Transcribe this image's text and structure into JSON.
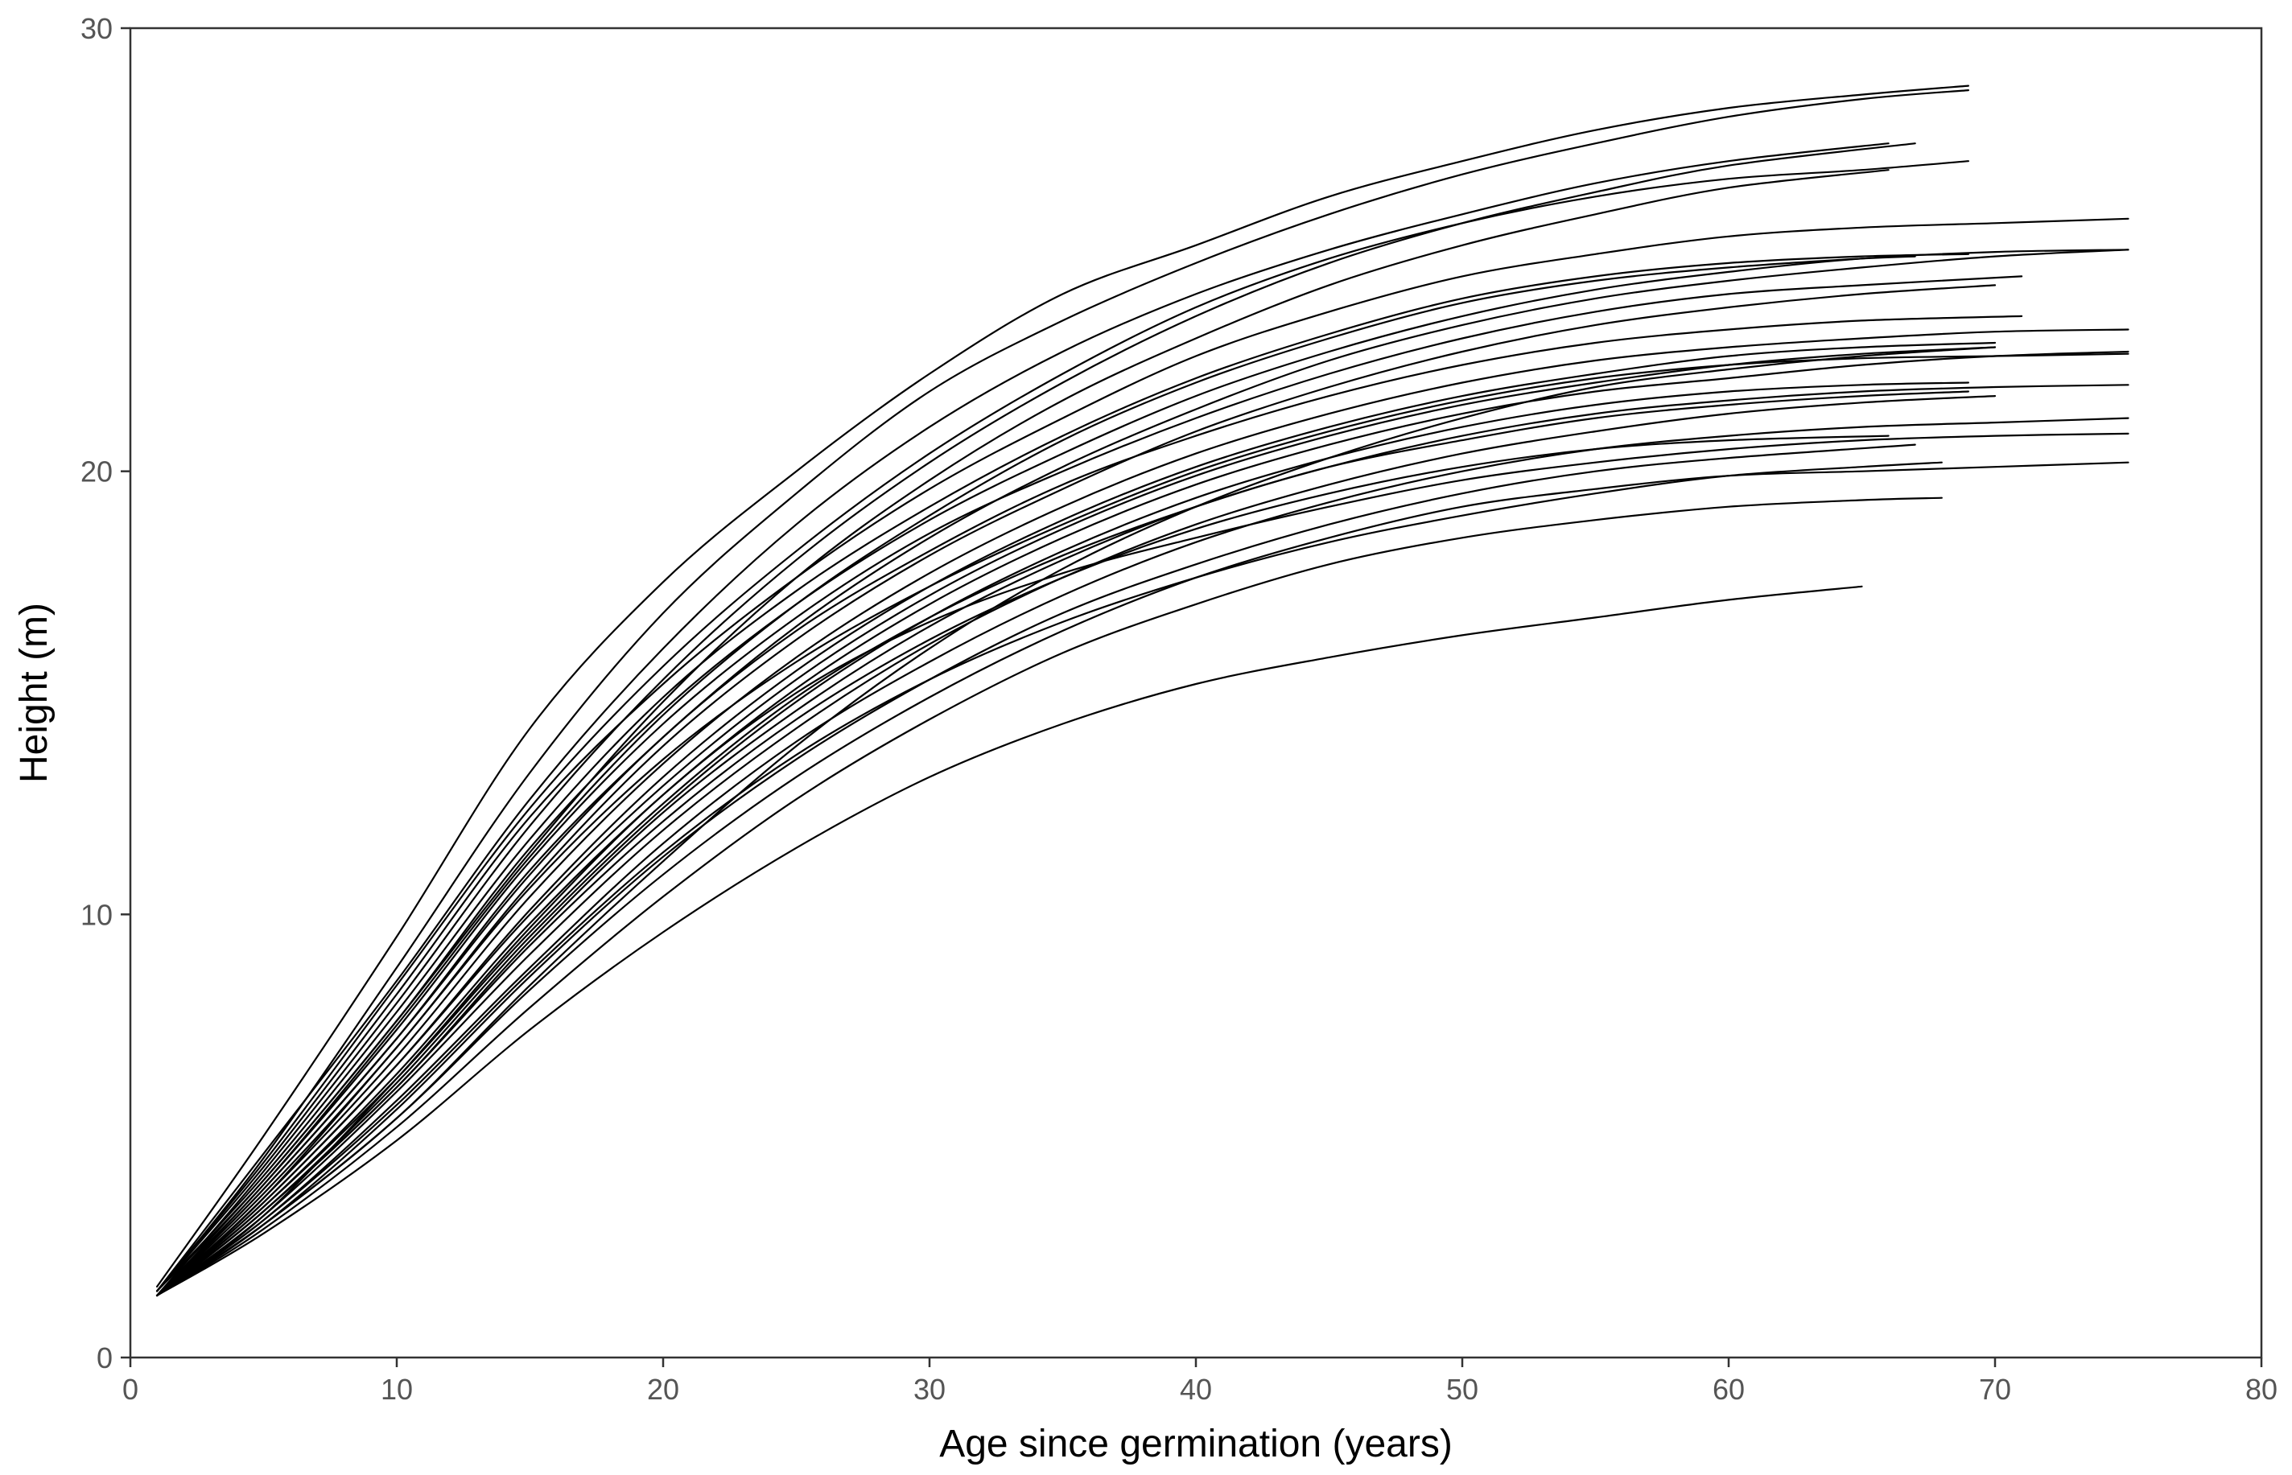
{
  "chart_data": {
    "type": "line",
    "title": "",
    "xlabel": "Age since germination (years)",
    "ylabel": "Height (m)",
    "xlim": [
      0,
      80
    ],
    "ylim": [
      0,
      30
    ],
    "xticks": [
      0,
      10,
      20,
      30,
      40,
      50,
      60,
      70,
      80
    ],
    "yticks": [
      0,
      10,
      20,
      30
    ],
    "grid": false,
    "legend": "none",
    "series_color": "#000000",
    "series": [
      {
        "x": [
          1,
          5,
          10,
          15,
          20,
          25,
          30,
          35,
          40,
          45,
          50,
          55,
          60,
          65,
          69
        ],
        "y": [
          1.6,
          5.0,
          9.5,
          14.2,
          17.5,
          20.0,
          22.2,
          24.0,
          25.1,
          26.2,
          27.0,
          27.7,
          28.2,
          28.5,
          28.7
        ]
      },
      {
        "x": [
          1,
          5,
          10,
          15,
          20,
          25,
          30,
          35,
          40,
          45,
          50,
          55,
          60,
          65,
          69
        ],
        "y": [
          1.5,
          4.5,
          8.8,
          13.2,
          16.8,
          19.5,
          21.8,
          23.4,
          24.7,
          25.8,
          26.7,
          27.4,
          28.0,
          28.4,
          28.6
        ]
      },
      {
        "x": [
          1,
          5,
          10,
          15,
          20,
          25,
          30,
          35,
          40,
          45,
          50,
          55,
          60,
          66
        ],
        "y": [
          1.5,
          4.6,
          8.5,
          12.6,
          16.0,
          18.8,
          21.0,
          22.7,
          24.0,
          25.0,
          25.8,
          26.5,
          27.0,
          27.4
        ]
      },
      {
        "x": [
          1,
          5,
          10,
          15,
          20,
          25,
          30,
          35,
          40,
          45,
          50,
          55,
          60,
          67
        ],
        "y": [
          1.4,
          4.2,
          8.0,
          12.0,
          15.3,
          18.0,
          20.2,
          22.0,
          23.5,
          24.7,
          25.6,
          26.3,
          26.9,
          27.4
        ]
      },
      {
        "x": [
          1,
          5,
          10,
          15,
          20,
          25,
          30,
          35,
          40,
          45,
          50,
          55,
          60,
          65,
          69
        ],
        "y": [
          1.5,
          4.4,
          8.4,
          12.4,
          15.6,
          18.2,
          20.4,
          22.2,
          23.7,
          24.8,
          25.6,
          26.2,
          26.6,
          26.8,
          27.0
        ]
      },
      {
        "x": [
          1,
          5,
          10,
          15,
          20,
          25,
          30,
          35,
          40,
          45,
          50,
          55,
          60,
          66
        ],
        "y": [
          1.5,
          4.0,
          7.6,
          11.4,
          14.8,
          17.6,
          19.8,
          21.6,
          23.0,
          24.2,
          25.1,
          25.8,
          26.4,
          26.8
        ]
      },
      {
        "x": [
          1,
          5,
          10,
          15,
          20,
          25,
          30,
          35,
          40,
          45,
          50,
          55,
          60,
          65,
          70,
          75
        ],
        "y": [
          1.5,
          4.3,
          8.2,
          12.2,
          15.2,
          17.6,
          19.6,
          21.2,
          22.6,
          23.6,
          24.4,
          24.9,
          25.3,
          25.5,
          25.6,
          25.7
        ]
      },
      {
        "x": [
          1,
          5,
          10,
          15,
          20,
          25,
          30,
          35,
          40,
          45,
          50,
          55,
          60,
          65,
          70,
          75
        ],
        "y": [
          1.4,
          4.0,
          7.6,
          11.5,
          14.6,
          17.0,
          18.9,
          20.4,
          21.7,
          22.7,
          23.5,
          24.1,
          24.5,
          24.8,
          24.95,
          25.0
        ]
      },
      {
        "x": [
          1,
          5,
          10,
          15,
          20,
          25,
          30,
          35,
          40,
          45,
          50,
          55,
          60,
          65,
          70,
          75
        ],
        "y": [
          1.4,
          3.8,
          7.2,
          11.0,
          14.0,
          16.5,
          18.5,
          20.1,
          21.4,
          22.5,
          23.3,
          23.9,
          24.3,
          24.6,
          24.85,
          25.0
        ]
      },
      {
        "x": [
          1,
          5,
          10,
          15,
          20,
          25,
          30,
          35,
          40,
          45,
          50,
          55,
          60,
          65,
          71
        ],
        "y": [
          1.4,
          3.9,
          7.4,
          11.2,
          14.3,
          16.7,
          18.6,
          20.0,
          21.2,
          22.2,
          23.0,
          23.6,
          24.0,
          24.2,
          24.4
        ]
      },
      {
        "x": [
          1,
          5,
          10,
          15,
          20,
          25,
          30,
          35,
          40,
          45,
          50,
          55,
          60,
          65,
          70
        ],
        "y": [
          1.4,
          3.7,
          7.0,
          10.7,
          13.8,
          16.2,
          18.1,
          19.6,
          20.9,
          21.9,
          22.7,
          23.3,
          23.7,
          24.0,
          24.2
        ]
      },
      {
        "x": [
          1,
          5,
          10,
          15,
          20,
          25,
          30,
          35,
          40,
          45,
          50,
          55,
          60,
          65,
          71
        ],
        "y": [
          1.4,
          3.8,
          7.2,
          10.9,
          14.0,
          16.4,
          18.2,
          19.7,
          20.8,
          21.7,
          22.4,
          22.9,
          23.2,
          23.4,
          23.5
        ]
      },
      {
        "x": [
          1,
          5,
          10,
          15,
          20,
          25,
          30,
          35,
          40,
          45,
          50,
          55,
          60,
          65,
          70,
          75
        ],
        "y": [
          1.4,
          3.6,
          6.8,
          10.4,
          13.4,
          15.8,
          17.7,
          19.2,
          20.4,
          21.3,
          22.0,
          22.5,
          22.8,
          23.0,
          23.15,
          23.2
        ]
      },
      {
        "x": [
          1,
          5,
          10,
          15,
          20,
          25,
          30,
          35,
          40,
          45,
          50,
          55,
          60,
          65,
          70
        ],
        "y": [
          1.4,
          3.5,
          6.6,
          10.1,
          13.1,
          15.5,
          17.4,
          18.9,
          20.1,
          21.0,
          21.7,
          22.2,
          22.6,
          22.8,
          22.9
        ]
      },
      {
        "x": [
          1,
          5,
          10,
          15,
          20,
          25,
          30,
          35,
          40,
          45,
          50,
          55,
          60,
          65,
          70,
          75
        ],
        "y": [
          1.4,
          3.4,
          6.4,
          9.8,
          12.7,
          15.1,
          17.0,
          18.5,
          19.7,
          20.6,
          21.3,
          21.8,
          22.1,
          22.4,
          22.6,
          22.7
        ]
      },
      {
        "x": [
          1,
          5,
          10,
          15,
          20,
          25,
          30,
          35,
          40,
          45,
          50,
          55,
          60,
          65,
          70,
          75
        ],
        "y": [
          1.4,
          3.3,
          6.1,
          9.4,
          12.3,
          14.6,
          16.5,
          18.0,
          19.2,
          20.1,
          20.8,
          21.3,
          21.6,
          21.8,
          21.9,
          21.95
        ]
      },
      {
        "x": [
          1,
          5,
          10,
          15,
          20,
          25,
          30,
          35,
          40,
          45,
          50,
          55,
          60,
          65,
          69
        ],
        "y": [
          1.4,
          3.4,
          6.3,
          9.6,
          12.5,
          14.9,
          16.7,
          18.1,
          19.2,
          20.1,
          20.7,
          21.2,
          21.5,
          21.7,
          21.8
        ]
      },
      {
        "x": [
          1,
          5,
          10,
          15,
          20,
          25,
          30,
          35,
          40,
          45,
          50,
          55,
          60,
          65,
          70
        ],
        "y": [
          1.4,
          3.2,
          6.0,
          9.1,
          11.9,
          14.2,
          16.1,
          17.6,
          18.8,
          19.7,
          20.4,
          20.9,
          21.3,
          21.55,
          21.7
        ]
      },
      {
        "x": [
          1,
          5,
          10,
          15,
          20,
          25,
          30,
          35,
          40,
          45,
          50,
          55,
          60,
          65,
          70,
          75
        ],
        "y": [
          1.4,
          3.1,
          5.8,
          8.8,
          11.6,
          13.9,
          15.7,
          17.2,
          18.4,
          19.3,
          20.0,
          20.5,
          20.8,
          21.0,
          21.1,
          21.2
        ]
      },
      {
        "x": [
          1,
          5,
          10,
          15,
          20,
          25,
          30,
          35,
          40,
          45,
          50,
          55,
          60,
          66
        ],
        "y": [
          1.4,
          3.3,
          6.1,
          9.3,
          12.1,
          14.4,
          16.2,
          17.6,
          18.7,
          19.5,
          20.1,
          20.5,
          20.7,
          20.8
        ]
      },
      {
        "x": [
          1,
          5,
          10,
          15,
          20,
          25,
          30,
          35,
          40,
          45,
          50,
          55,
          60,
          67
        ],
        "y": [
          1.4,
          3.0,
          5.6,
          8.6,
          11.3,
          13.5,
          15.3,
          16.8,
          17.9,
          18.8,
          19.5,
          20.0,
          20.3,
          20.6
        ]
      },
      {
        "x": [
          1,
          5,
          10,
          15,
          20,
          25,
          30,
          35,
          40,
          45,
          50,
          55,
          60,
          65,
          70,
          75
        ],
        "y": [
          1.4,
          3.0,
          5.4,
          8.3,
          10.9,
          13.1,
          14.9,
          16.4,
          17.6,
          18.5,
          19.2,
          19.6,
          19.9,
          20.0,
          20.1,
          20.2
        ]
      },
      {
        "x": [
          1,
          5,
          10,
          15,
          20,
          25,
          30,
          35,
          40,
          45,
          50,
          55,
          60,
          65,
          68
        ],
        "y": [
          1.4,
          2.9,
          5.2,
          7.9,
          10.4,
          12.6,
          14.4,
          15.9,
          17.0,
          17.9,
          18.5,
          18.9,
          19.2,
          19.35,
          19.4
        ]
      },
      {
        "x": [
          1,
          5,
          10,
          15,
          20,
          25,
          30,
          35,
          40,
          45,
          50,
          55,
          60,
          65
        ],
        "y": [
          1.4,
          2.8,
          4.9,
          7.4,
          9.6,
          11.5,
          13.1,
          14.3,
          15.2,
          15.8,
          16.3,
          16.7,
          17.1,
          17.4
        ]
      },
      {
        "x": [
          1,
          5,
          10,
          15,
          20,
          25,
          30,
          35,
          40,
          45,
          50,
          55,
          60,
          65,
          70,
          75
        ],
        "y": [
          1.4,
          3.2,
          6.3,
          9.7,
          12.7,
          15.0,
          16.6,
          17.7,
          18.5,
          19.2,
          19.8,
          20.2,
          20.5,
          20.7,
          20.8,
          20.85
        ]
      },
      {
        "x": [
          1,
          5,
          10,
          15,
          20,
          25,
          30,
          35,
          40,
          45,
          50,
          55,
          60,
          65,
          70
        ],
        "y": [
          1.4,
          3.0,
          5.4,
          8.4,
          11.2,
          13.8,
          16.0,
          17.8,
          19.2,
          20.3,
          21.2,
          21.9,
          22.3,
          22.6,
          22.8
        ]
      },
      {
        "x": [
          1,
          5,
          10,
          15,
          20,
          25,
          30,
          35,
          40,
          45,
          50,
          55,
          60,
          65,
          68
        ],
        "y": [
          1.4,
          3.1,
          5.7,
          8.7,
          11.4,
          13.6,
          15.3,
          16.6,
          17.6,
          18.4,
          19.0,
          19.5,
          19.9,
          20.1,
          20.2
        ]
      },
      {
        "x": [
          1,
          5,
          10,
          15,
          20,
          25,
          30,
          35,
          40,
          45,
          50,
          55,
          60,
          65,
          70,
          75
        ],
        "y": [
          1.4,
          3.6,
          7.0,
          10.6,
          13.5,
          15.7,
          17.4,
          18.8,
          20.0,
          20.9,
          21.6,
          22.1,
          22.4,
          22.55,
          22.6,
          22.65
        ]
      },
      {
        "x": [
          1,
          5,
          10,
          15,
          20,
          25,
          30,
          35,
          40,
          45,
          50,
          55,
          60,
          65,
          69
        ],
        "y": [
          1.5,
          4.1,
          7.8,
          11.7,
          14.9,
          17.3,
          19.2,
          20.8,
          22.1,
          23.1,
          23.9,
          24.4,
          24.7,
          24.85,
          24.9
        ]
      },
      {
        "x": [
          1,
          5,
          10,
          15,
          20,
          25,
          30,
          35,
          40,
          45,
          50,
          55,
          60,
          65,
          70
        ],
        "y": [
          1.4,
          3.5,
          6.6,
          10.0,
          12.9,
          15.3,
          17.2,
          18.7,
          19.9,
          20.8,
          21.5,
          22.0,
          22.4,
          22.65,
          22.8
        ]
      },
      {
        "x": [
          1,
          5,
          10,
          15,
          20,
          25,
          30,
          35,
          40,
          45,
          50,
          55,
          60,
          65,
          69
        ],
        "y": [
          1.4,
          3.3,
          6.2,
          9.5,
          12.4,
          14.8,
          16.7,
          18.2,
          19.4,
          20.3,
          21.0,
          21.5,
          21.8,
          21.95,
          22.0
        ]
      },
      {
        "x": [
          1,
          5,
          10,
          15,
          20,
          25,
          30,
          35,
          40,
          45,
          50,
          55,
          60,
          65,
          67
        ],
        "y": [
          1.4,
          3.9,
          7.5,
          11.3,
          14.5,
          17.0,
          19.0,
          20.7,
          22.0,
          23.0,
          23.8,
          24.3,
          24.6,
          24.8,
          24.85
        ]
      }
    ]
  }
}
